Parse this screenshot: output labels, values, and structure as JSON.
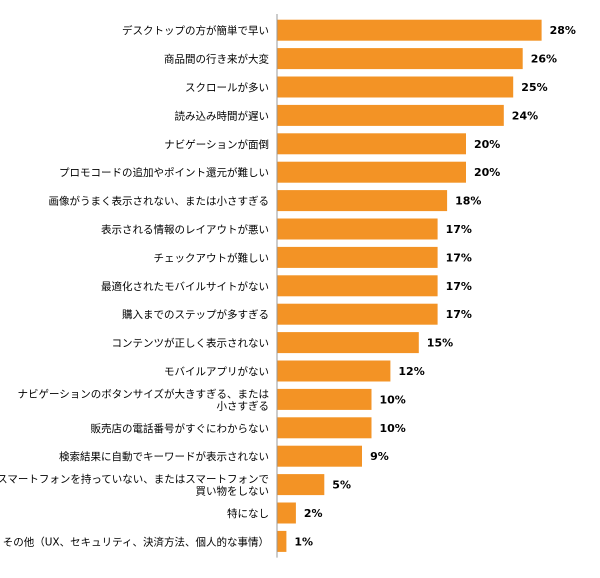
{
  "chart_data": {
    "type": "bar",
    "orientation": "horizontal",
    "categories": [
      "デスクトップの方が簡単で早い",
      "商品間の行き来が大変",
      "スクロールが多い",
      "読み込み時間が遅い",
      "ナビゲーションが面倒",
      "プロモコードの追加やポイント還元が難しい",
      "画像がうまく表示されない、または小さすぎる",
      "表示される情報のレイアウトが悪い",
      "チェックアウトが難しい",
      "最適化されたモバイルサイトがない",
      "購入までのステップが多すぎる",
      "コンテンツが正しく表示されない",
      "モバイルアプリがない",
      "ナビゲーションのボタンサイズが大きすぎる、または小さすぎる",
      "販売店の電話番号がすぐにわからない",
      "検索結果に自動でキーワードが表示されない",
      "スマートフォンを持っていない、またはスマートフォンで買い物をしない",
      "特になし",
      "その他（UX、セキュリティ、決済方法、個人的な事情）"
    ],
    "label_lines": [
      [
        "デスクトップの方が簡単で早い"
      ],
      [
        "商品間の行き来が大変"
      ],
      [
        "スクロールが多い"
      ],
      [
        "読み込み時間が遅い"
      ],
      [
        "ナビゲーションが面倒"
      ],
      [
        "プロモコードの追加やポイント還元が難しい"
      ],
      [
        "画像がうまく表示されない、または小さすぎる"
      ],
      [
        "表示される情報のレイアウトが悪い"
      ],
      [
        "チェックアウトが難しい"
      ],
      [
        "最適化されたモバイルサイトがない"
      ],
      [
        "購入までのステップが多すぎる"
      ],
      [
        "コンテンツが正しく表示されない"
      ],
      [
        "モバイルアプリがない"
      ],
      [
        "ナビゲーションのボタンサイズが大きすぎる、または",
        "小さすぎる"
      ],
      [
        "販売店の電話番号がすぐにわからない"
      ],
      [
        "検索結果に自動でキーワードが表示されない"
      ],
      [
        "スマートフォンを持っていない、またはスマートフォンで",
        "買い物をしない"
      ],
      [
        "特になし"
      ],
      [
        "その他（UX、セキュリティ、決済方法、個人的な事情）"
      ]
    ],
    "values": [
      28,
      26,
      25,
      24,
      20,
      20,
      18,
      17,
      17,
      17,
      17,
      15,
      12,
      10,
      10,
      9,
      5,
      2,
      1
    ],
    "value_labels": [
      "28%",
      "26%",
      "25%",
      "24%",
      "20%",
      "20%",
      "18%",
      "17%",
      "17%",
      "17%",
      "17%",
      "15%",
      "12%",
      "10%",
      "10%",
      "9%",
      "5%",
      "2%",
      "1%"
    ],
    "unit": "%",
    "xlim": [
      0,
      30
    ],
    "bar_color": "#F39325",
    "axis_color": "#999999",
    "grid": false,
    "legend": "none",
    "title": "",
    "xlabel": "",
    "ylabel": ""
  }
}
